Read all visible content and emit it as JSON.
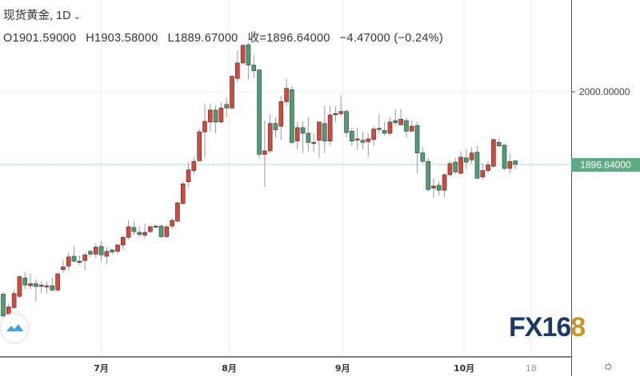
{
  "header": {
    "symbol_label": "现货黄金, 1D",
    "open": "O1901.59000",
    "high": "H1903.58000",
    "low": "L1889.67000",
    "close": "收=1896.64000",
    "change": "−4.47000 (−0.24%)"
  },
  "logo_text": {
    "part1": "FX16",
    "part2": "8"
  },
  "icons": {
    "settings": "gear-icon",
    "badge": "mountain-logo-icon",
    "interval": "chevron-down-icon"
  },
  "colors": {
    "up": "#d9473a",
    "down": "#4e9e74",
    "last_price": "#5fa985",
    "grid": "#eeeeee"
  },
  "chart_data": {
    "type": "candlestick",
    "title": "现货黄金, 1D",
    "ylim": [
      1621,
      2068
    ],
    "y_ticks": [
      {
        "value": 2000,
        "label": "2000.00000"
      }
    ],
    "last_price": {
      "value": 1896.64,
      "label": "1896.64000"
    },
    "x_ticks": [
      {
        "index": 18,
        "label": "7月"
      },
      {
        "index": 41.5,
        "label": "8月"
      },
      {
        "index": 62.3,
        "label": "9月"
      },
      {
        "index": 84.6,
        "label": "10月"
      },
      {
        "index": 96.9,
        "label": "18"
      }
    ],
    "candles_ohlc": [
      [
        1712,
        1715,
        1679,
        1681
      ],
      [
        1684,
        1699,
        1682,
        1694
      ],
      [
        1693,
        1718,
        1691,
        1713
      ],
      [
        1709,
        1739,
        1707,
        1737
      ],
      [
        1735,
        1743,
        1719,
        1725
      ],
      [
        1724,
        1741,
        1719,
        1727
      ],
      [
        1727,
        1733,
        1702,
        1723
      ],
      [
        1725,
        1731,
        1714,
        1725
      ],
      [
        1724,
        1730,
        1713,
        1724
      ],
      [
        1724,
        1736,
        1716,
        1718
      ],
      [
        1718,
        1743,
        1716,
        1741
      ],
      [
        1747,
        1761,
        1742,
        1751
      ],
      [
        1752,
        1771,
        1746,
        1765
      ],
      [
        1766,
        1780,
        1758,
        1759
      ],
      [
        1759,
        1767,
        1754,
        1759
      ],
      [
        1760,
        1771,
        1746,
        1768
      ],
      [
        1773,
        1775,
        1765,
        1769
      ],
      [
        1769,
        1784,
        1764,
        1779
      ],
      [
        1780,
        1788,
        1759,
        1768
      ],
      [
        1766,
        1779,
        1756,
        1773
      ],
      [
        1775,
        1777,
        1769,
        1772
      ],
      [
        1773,
        1784,
        1769,
        1782
      ],
      [
        1782,
        1796,
        1775,
        1793
      ],
      [
        1793,
        1817,
        1790,
        1808
      ],
      [
        1807,
        1816,
        1796,
        1801
      ],
      [
        1800,
        1809,
        1793,
        1797
      ],
      [
        1796,
        1813,
        1792,
        1800
      ],
      [
        1801,
        1810,
        1799,
        1808
      ],
      [
        1809,
        1811,
        1807,
        1809
      ],
      [
        1809,
        1811,
        1792,
        1794
      ],
      [
        1794,
        1810,
        1792,
        1808
      ],
      [
        1809,
        1821,
        1805,
        1817
      ],
      [
        1816,
        1844,
        1814,
        1842
      ],
      [
        1841,
        1872,
        1839,
        1869
      ],
      [
        1872,
        1899,
        1864,
        1889
      ],
      [
        1888,
        1907,
        1883,
        1901
      ],
      [
        1902,
        1947,
        1900,
        1943
      ],
      [
        1943,
        1983,
        1907,
        1958
      ],
      [
        1957,
        1983,
        1943,
        1974
      ],
      [
        1974,
        1981,
        1941,
        1957
      ],
      [
        1957,
        1985,
        1955,
        1977
      ],
      [
        1982,
        1991,
        1964,
        1977
      ],
      [
        1977,
        2024,
        1975,
        2022
      ],
      [
        2019,
        2059,
        2014,
        2041
      ],
      [
        2041,
        2068,
        2039,
        2066
      ],
      [
        2067,
        2070,
        2018,
        2038
      ],
      [
        2038,
        2053,
        2020,
        2030
      ],
      [
        2031,
        2033,
        1906,
        1911
      ],
      [
        1911,
        1960,
        1864,
        1916
      ],
      [
        1916,
        1968,
        1913,
        1955
      ],
      [
        1955,
        1964,
        1935,
        1946
      ],
      [
        1951,
        1994,
        1931,
        1986
      ],
      [
        1986,
        2019,
        1980,
        2005
      ],
      [
        2003,
        2008,
        1926,
        1928
      ],
      [
        1930,
        1957,
        1918,
        1949
      ],
      [
        1949,
        1958,
        1913,
        1941
      ],
      [
        1941,
        1964,
        1915,
        1928
      ],
      [
        1928,
        1940,
        1915,
        1928
      ],
      [
        1931,
        1958,
        1906,
        1957
      ],
      [
        1955,
        1980,
        1913,
        1930
      ],
      [
        1930,
        1980,
        1924,
        1967
      ],
      [
        1968,
        1979,
        1957,
        1969
      ],
      [
        1969,
        1995,
        1966,
        1972
      ],
      [
        1972,
        1975,
        1935,
        1942
      ],
      [
        1944,
        1949,
        1923,
        1930
      ],
      [
        1933,
        1949,
        1918,
        1933
      ],
      [
        1931,
        1943,
        1918,
        1928
      ],
      [
        1929,
        1941,
        1907,
        1933
      ],
      [
        1932,
        1951,
        1923,
        1947
      ],
      [
        1948,
        1968,
        1941,
        1948
      ],
      [
        1945,
        1957,
        1938,
        1941
      ],
      [
        1941,
        1964,
        1938,
        1957
      ],
      [
        1959,
        1975,
        1952,
        1956
      ],
      [
        1953,
        1975,
        1952,
        1961
      ],
      [
        1959,
        1963,
        1935,
        1944
      ],
      [
        1944,
        1960,
        1944,
        1951
      ],
      [
        1952,
        1957,
        1884,
        1913
      ],
      [
        1913,
        1921,
        1898,
        1901
      ],
      [
        1901,
        1906,
        1858,
        1861
      ],
      [
        1863,
        1877,
        1849,
        1866
      ],
      [
        1867,
        1873,
        1852,
        1860
      ],
      [
        1860,
        1884,
        1850,
        1882
      ],
      [
        1882,
        1901,
        1879,
        1898
      ],
      [
        1900,
        1906,
        1883,
        1886
      ],
      [
        1884,
        1915,
        1883,
        1907
      ],
      [
        1906,
        1918,
        1890,
        1900
      ],
      [
        1903,
        1921,
        1898,
        1913
      ],
      [
        1914,
        1923,
        1876,
        1877
      ],
      [
        1879,
        1898,
        1875,
        1888
      ],
      [
        1888,
        1901,
        1884,
        1896
      ],
      [
        1894,
        1934,
        1892,
        1932
      ],
      [
        1928,
        1934,
        1921,
        1923
      ],
      [
        1924,
        1926,
        1888,
        1891
      ],
      [
        1891,
        1913,
        1884,
        1901
      ],
      [
        1901.59,
        1903.58,
        1889.67,
        1896.64
      ]
    ]
  }
}
